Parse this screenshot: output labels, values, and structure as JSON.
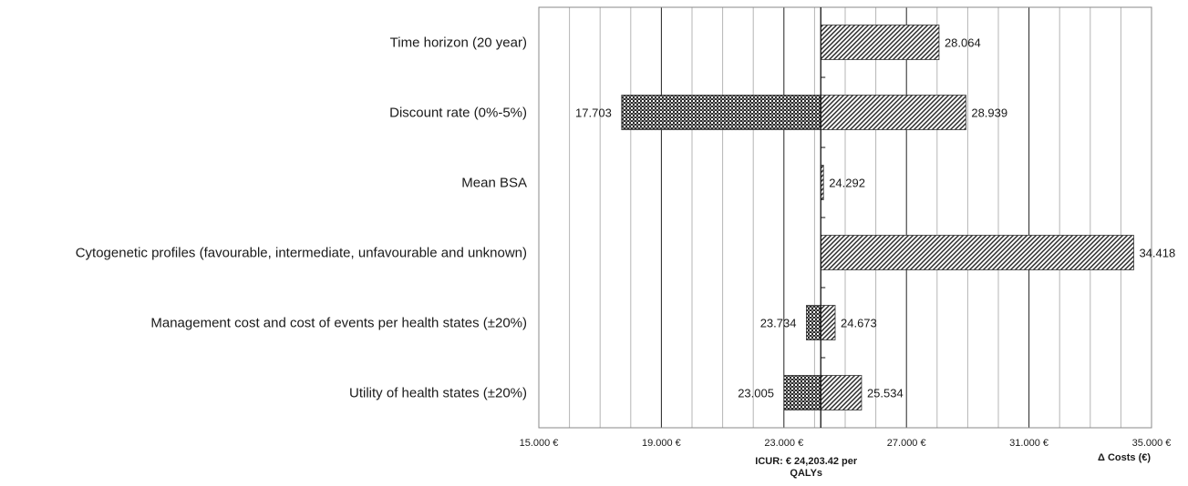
{
  "chart_data": {
    "type": "bar",
    "orientation": "horizontal",
    "variant": "tornado",
    "base_value": 24203.42,
    "categories": [
      "Time horizon (20 year)",
      "Discount rate (0%-5%)",
      "Mean BSA ",
      "Cytogenetic profiles (favourable, intermediate, unfavourable and unknown)",
      "Management cost and cost of events per health states (±20%)",
      "Utility of health states (±20%)"
    ],
    "series": [
      {
        "pattern": "checkered",
        "values": [
          null,
          17703,
          null,
          null,
          23734,
          23005
        ],
        "labels": [
          null,
          "17.703",
          null,
          null,
          "23.734",
          "23.005"
        ]
      },
      {
        "pattern": "diagonal-hatch",
        "values": [
          28064,
          28939,
          24292,
          34418,
          24673,
          25534
        ],
        "labels": [
          "28.064",
          "28.939",
          "24.292",
          "34.418",
          "24.673",
          "25.534"
        ]
      }
    ],
    "xlim": [
      15000,
      35000
    ],
    "x_ticks": [
      15000,
      19000,
      23000,
      27000,
      31000,
      35000
    ],
    "x_tick_labels": [
      "15.000 €",
      "19.000 €",
      "23.000 €",
      "27.000 €",
      "31.000 €",
      "35.000 €"
    ],
    "x_minor_step": 1000,
    "xlabel": "Δ Costs (€)",
    "base_label_lines": [
      "ICUR: € 24,203.42 per",
      "QALYs"
    ],
    "grid": true,
    "colors": {
      "grid": "#b5b5b5",
      "axis": "#333333",
      "bar_fill": "#ffffff",
      "pattern_dark": "#2a2a2a"
    }
  }
}
